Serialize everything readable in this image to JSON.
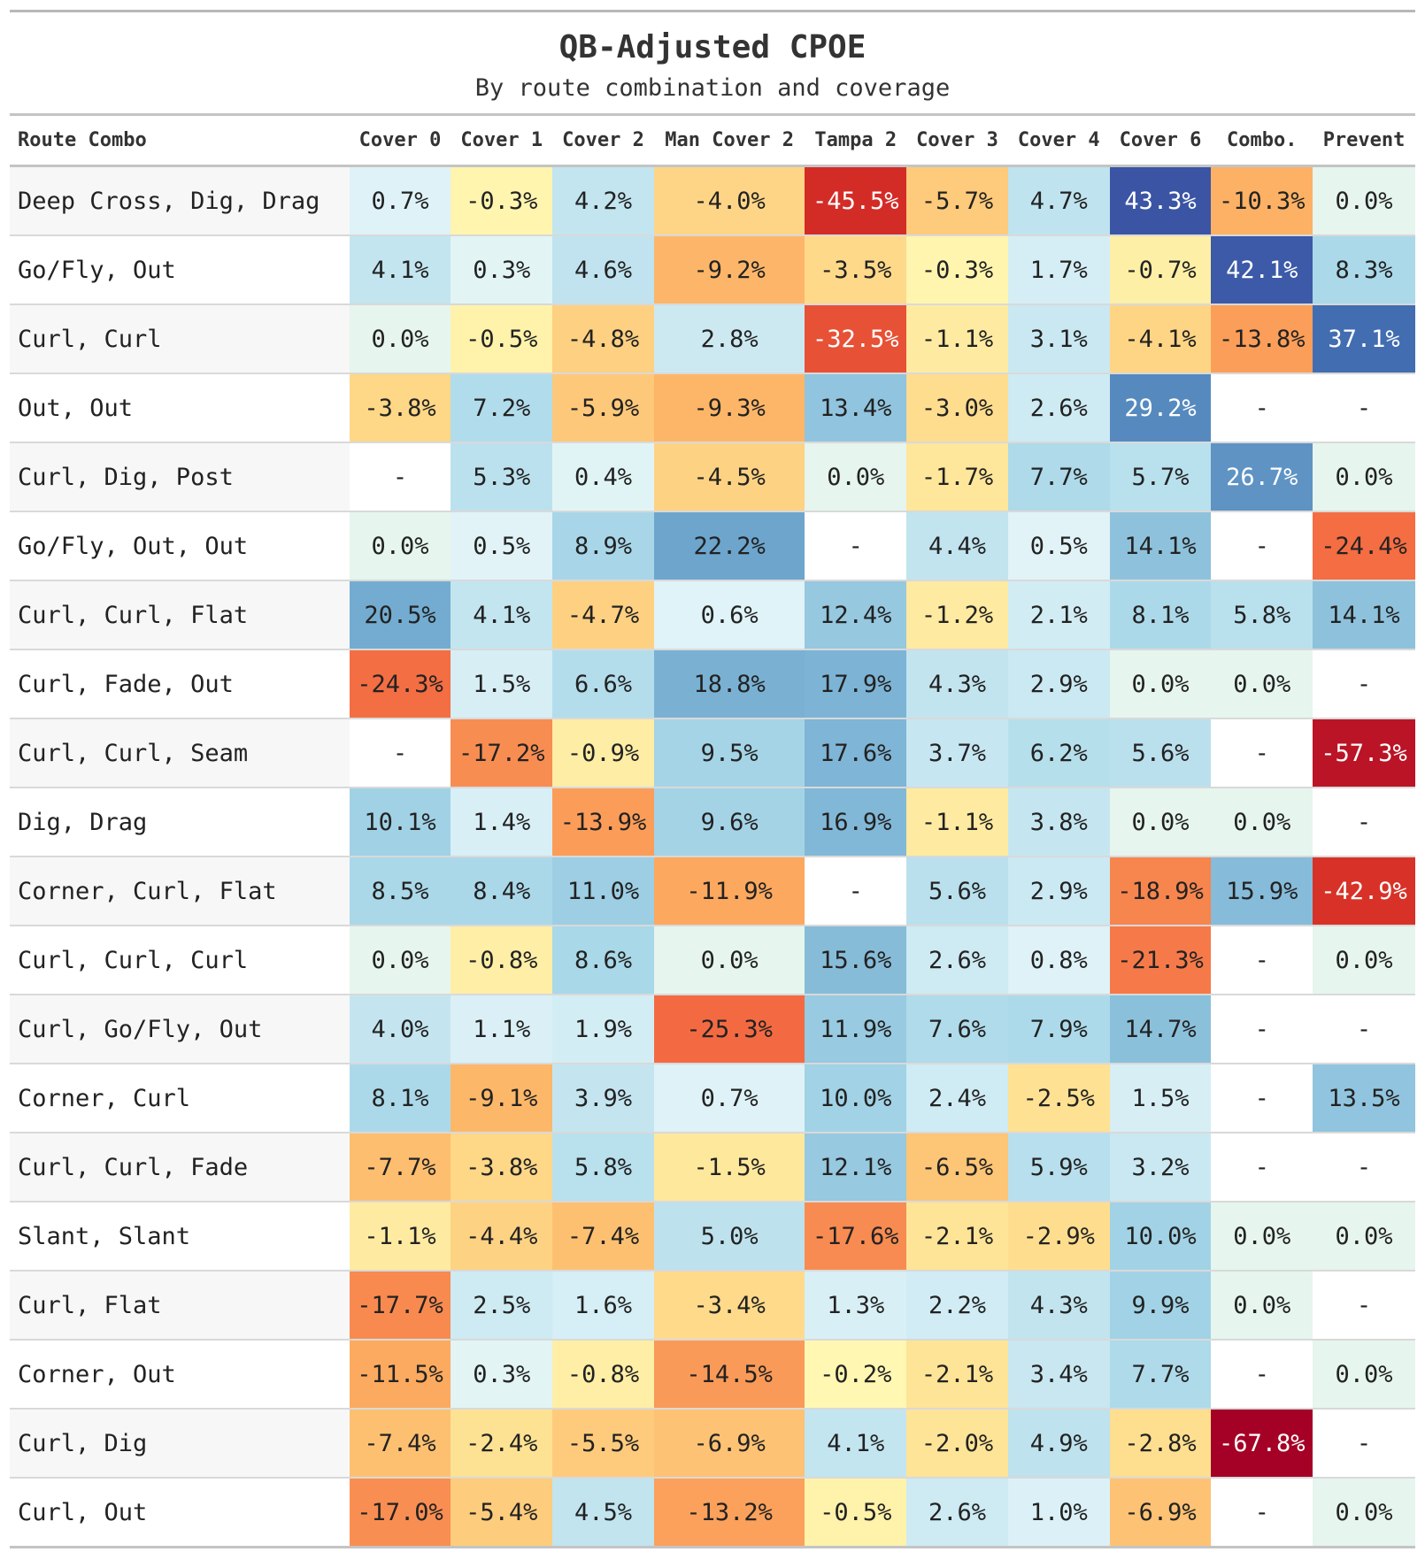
{
  "chart_data": {
    "type": "heatmap",
    "title": "QB-Adjusted CPOE",
    "subtitle": "By route combination and coverage",
    "row_header": "Route Combo",
    "missing_label": "-",
    "colormap": "diverging red-yellow-blue (negative = red, positive = blue)",
    "columns": [
      "Cover 0",
      "Cover 1",
      "Cover 2",
      "Man Cover 2",
      "Tampa 2",
      "Cover 3",
      "Cover 4",
      "Cover 6",
      "Combo.",
      "Prevent"
    ],
    "rows": [
      "Deep Cross, Dig, Drag",
      "Go/Fly, Out",
      "Curl, Curl",
      "Out, Out",
      "Curl, Dig, Post",
      "Go/Fly, Out, Out",
      "Curl, Curl, Flat",
      "Curl, Fade, Out",
      "Curl, Curl, Seam",
      "Dig, Drag",
      "Corner, Curl, Flat",
      "Curl, Curl, Curl",
      "Curl, Go/Fly, Out",
      "Corner, Curl",
      "Curl, Curl, Fade",
      "Slant, Slant",
      "Curl, Flat",
      "Corner, Out",
      "Curl, Dig",
      "Curl, Out"
    ],
    "values": [
      [
        0.7,
        -0.3,
        4.2,
        -4.0,
        -45.5,
        -5.7,
        4.7,
        43.3,
        -10.3,
        0.0
      ],
      [
        4.1,
        0.3,
        4.6,
        -9.2,
        -3.5,
        -0.3,
        1.7,
        -0.7,
        42.1,
        8.3
      ],
      [
        0.0,
        -0.5,
        -4.8,
        2.8,
        -32.5,
        -1.1,
        3.1,
        -4.1,
        -13.8,
        37.1
      ],
      [
        -3.8,
        7.2,
        -5.9,
        -9.3,
        13.4,
        -3.0,
        2.6,
        29.2,
        null,
        null
      ],
      [
        null,
        5.3,
        0.4,
        -4.5,
        0.0,
        -1.7,
        7.7,
        5.7,
        26.7,
        0.0
      ],
      [
        0.0,
        0.5,
        8.9,
        22.2,
        null,
        4.4,
        0.5,
        14.1,
        null,
        -24.4
      ],
      [
        20.5,
        4.1,
        -4.7,
        0.6,
        12.4,
        -1.2,
        2.1,
        8.1,
        5.8,
        14.1
      ],
      [
        -24.3,
        1.5,
        6.6,
        18.8,
        17.9,
        4.3,
        2.9,
        0.0,
        0.0,
        null
      ],
      [
        null,
        -17.2,
        -0.9,
        9.5,
        17.6,
        3.7,
        6.2,
        5.6,
        null,
        -57.3
      ],
      [
        10.1,
        1.4,
        -13.9,
        9.6,
        16.9,
        -1.1,
        3.8,
        0.0,
        0.0,
        null
      ],
      [
        8.5,
        8.4,
        11.0,
        -11.9,
        null,
        5.6,
        2.9,
        -18.9,
        15.9,
        -42.9
      ],
      [
        0.0,
        -0.8,
        8.6,
        0.0,
        15.6,
        2.6,
        0.8,
        -21.3,
        null,
        0.0
      ],
      [
        4.0,
        1.1,
        1.9,
        -25.3,
        11.9,
        7.6,
        7.9,
        14.7,
        null,
        null
      ],
      [
        8.1,
        -9.1,
        3.9,
        0.7,
        10.0,
        2.4,
        -2.5,
        1.5,
        null,
        13.5
      ],
      [
        -7.7,
        -3.8,
        5.8,
        -1.5,
        12.1,
        -6.5,
        5.9,
        3.2,
        null,
        null
      ],
      [
        -1.1,
        -4.4,
        -7.4,
        5.0,
        -17.6,
        -2.1,
        -2.9,
        10.0,
        0.0,
        0.0
      ],
      [
        -17.7,
        2.5,
        1.6,
        -3.4,
        1.3,
        2.2,
        4.3,
        9.9,
        0.0,
        null
      ],
      [
        -11.5,
        0.3,
        -0.8,
        -14.5,
        -0.2,
        -2.1,
        3.4,
        7.7,
        null,
        0.0
      ],
      [
        -7.4,
        -2.4,
        -5.5,
        -6.9,
        4.1,
        -2.0,
        4.9,
        -2.8,
        -67.8,
        null
      ],
      [
        -17.0,
        -5.4,
        4.5,
        -13.2,
        -0.5,
        2.6,
        1.0,
        -6.9,
        null,
        0.0
      ]
    ],
    "value_suffix": "%"
  }
}
